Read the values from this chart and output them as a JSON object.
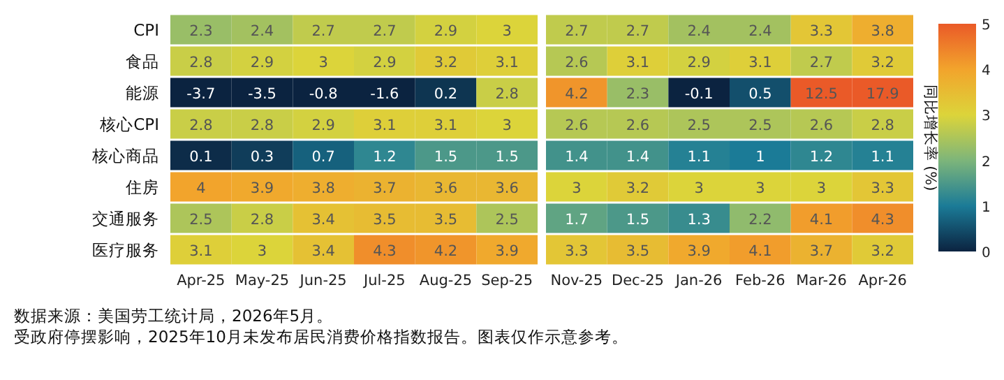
{
  "chart_data": {
    "type": "heatmap",
    "categories": [
      "Apr-25",
      "May-25",
      "Jun-25",
      "Jul-25",
      "Aug-25",
      "Sep-25",
      null,
      "Nov-25",
      "Dec-25",
      "Jan-26",
      "Feb-26",
      "Mar-26",
      "Apr-26"
    ],
    "y_categories": [
      "CPI",
      "食品",
      "能源",
      "核心CPI",
      "核心商品",
      "住房",
      "交通服务",
      "医疗服务"
    ],
    "cells": [
      [
        2.3,
        2.4,
        2.7,
        2.7,
        2.9,
        3,
        null,
        2.7,
        2.7,
        2.4,
        2.4,
        3.3,
        3.8
      ],
      [
        2.8,
        2.9,
        3,
        2.9,
        3.2,
        3.1,
        null,
        2.6,
        3.1,
        2.9,
        3.1,
        2.7,
        3.2
      ],
      [
        -3.7,
        -3.5,
        -0.8,
        -1.6,
        0.2,
        2.8,
        null,
        4.2,
        2.3,
        -0.1,
        0.5,
        12.5,
        17.9
      ],
      [
        2.8,
        2.8,
        2.9,
        3.1,
        3.1,
        3,
        null,
        2.6,
        2.6,
        2.5,
        2.5,
        2.6,
        2.8
      ],
      [
        0.1,
        0.3,
        0.7,
        1.2,
        1.5,
        1.5,
        null,
        1.4,
        1.4,
        1.1,
        1,
        1.2,
        1.1
      ],
      [
        4,
        3.9,
        3.8,
        3.7,
        3.6,
        3.6,
        null,
        3,
        3.2,
        3,
        3,
        3,
        3.3
      ],
      [
        2.5,
        2.8,
        3.4,
        3.5,
        3.5,
        2.5,
        null,
        1.7,
        1.5,
        1.3,
        2.2,
        4.1,
        4.3
      ],
      [
        3.1,
        3,
        3.4,
        4.3,
        4.2,
        3.9,
        null,
        3.3,
        3.5,
        3.9,
        4.1,
        3.7,
        3.2
      ]
    ],
    "clim": [
      0,
      5
    ],
    "cticks": [
      0,
      1,
      2,
      3,
      4,
      5
    ],
    "clabel": "同比增长率 (%)",
    "data_labels": true,
    "annotations": [
      "数据来源：美国劳工统计局，2026年5月。",
      "受政府停摆影响，2025年10月未发布居民消费价格指数报告。图表仅作示意参考。"
    ]
  }
}
